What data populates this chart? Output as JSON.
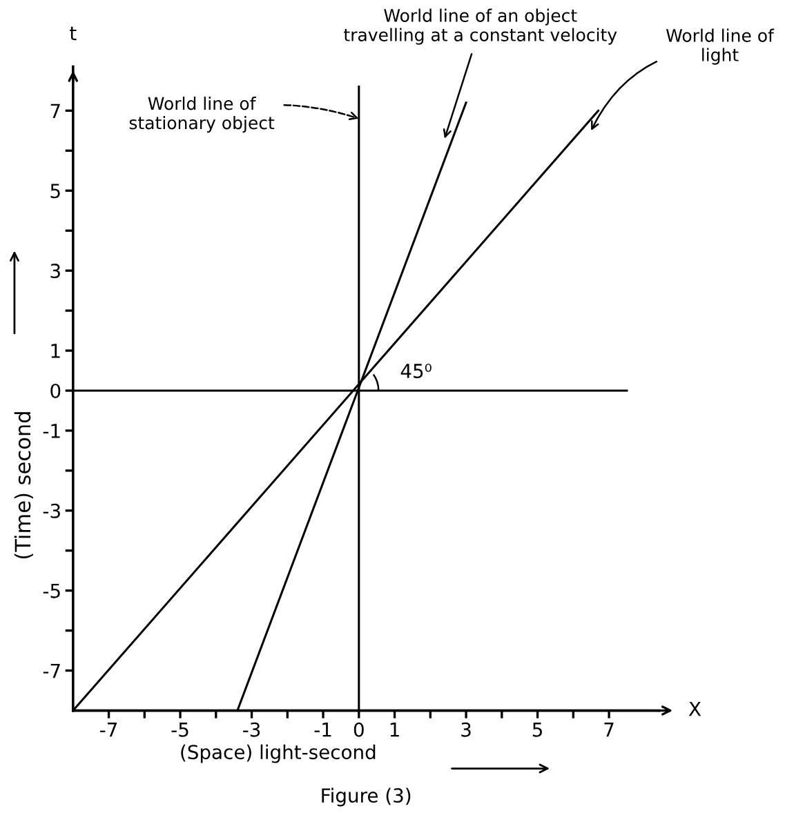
{
  "chart_data": {
    "type": "line",
    "xlabel": "(Space) light-second",
    "ylabel": "(Time) second",
    "xlim": [
      -8,
      8.4
    ],
    "ylim": [
      -8,
      8.1
    ],
    "xticks": [
      -7,
      {
        "value": -6,
        "label": null
      },
      -5,
      {
        "value": -4,
        "label": null
      },
      -3,
      {
        "value": -2,
        "label": null
      },
      -1,
      0,
      1,
      {
        "value": 2,
        "label": null
      },
      3,
      {
        "value": 4,
        "label": null
      },
      5,
      {
        "value": 6,
        "label": null
      },
      7
    ],
    "yticks": [
      -7,
      {
        "value": -6,
        "label": null
      },
      -5,
      {
        "value": -4,
        "label": null
      },
      -3,
      {
        "value": -2,
        "label": null
      },
      -1,
      0,
      1,
      {
        "value": 2,
        "label": null
      },
      3,
      {
        "value": 4,
        "label": null
      },
      5,
      {
        "value": 6,
        "label": null
      },
      7
    ],
    "series": [
      {
        "color": "#000000",
        "x": [
          -8,
          7.5
        ],
        "values": [
          0,
          0
        ]
      },
      {
        "color": "#000000",
        "x": [
          0,
          0
        ],
        "values": [
          -8,
          7.6
        ]
      },
      {
        "color": "#000000",
        "x": [
          -3.4,
          3.0
        ],
        "values": [
          -8,
          7.2
        ]
      },
      {
        "color": "#000000",
        "x": [
          -8,
          6.7
        ],
        "values": [
          -8,
          7.0
        ]
      }
    ],
    "line_style": "solid",
    "marker": "none",
    "grid": false,
    "legend": false,
    "annotations": [
      {
        "text": "World line of\nstationary object",
        "x": 0,
        "y": 6.8
      },
      {
        "text": "World line of an object\ntravelling at a constant velocity",
        "x": 2.4,
        "y": 6.3
      },
      {
        "text": "World line of\nlight",
        "x": 6.5,
        "y": 6.5
      },
      {
        "text": "45⁰",
        "x": 0,
        "y": 0
      },
      "t",
      "X",
      "Figure (3)"
    ]
  }
}
